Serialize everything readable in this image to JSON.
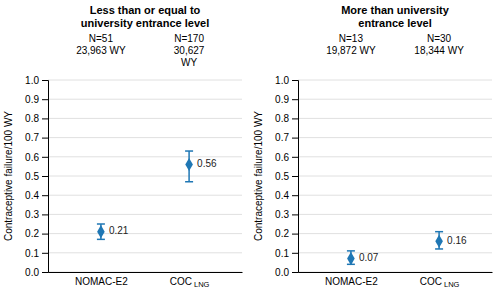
{
  "chart_data": [
    {
      "type": "scatter",
      "title": "Less than or equal to\nuniversity entrance level",
      "subtitle": [
        [
          "N=51",
          "23,963 WY"
        ],
        [
          "N=170",
          "30,627",
          "WY"
        ]
      ],
      "ylabel": "Contraceptive failure/100 WY",
      "categories": [
        "NOMAC-E2",
        "COC LNG"
      ],
      "values": [
        0.21,
        0.56
      ],
      "error_low": [
        0.04,
        0.09
      ],
      "error_high": [
        0.04,
        0.07
      ],
      "data_labels": true,
      "marker": "diamond",
      "ylim": [
        0.0,
        1.0
      ],
      "yticks": [
        {
          "value": 0.0,
          "label": "0.0"
        },
        0.1,
        0.2,
        0.3,
        0.4,
        0.5,
        0.6,
        0.7,
        0.8,
        0.9,
        {
          "value": 1.0,
          "label": "1.0"
        }
      ],
      "grid": true
    },
    {
      "type": "scatter",
      "title": "More than university\nentrance level",
      "subtitle": [
        [
          "N=13",
          "19,872 WY"
        ],
        [
          "N=30",
          "18,344 WY"
        ]
      ],
      "ylabel": "Contraceptive failure/100 WY",
      "categories": [
        "NOMAC-E2",
        "COC LNG"
      ],
      "values": [
        0.07,
        0.16
      ],
      "error_low": [
        0.03,
        0.04
      ],
      "error_high": [
        0.04,
        0.05
      ],
      "data_labels": true,
      "marker": "diamond",
      "ylim": [
        0.0,
        1.0
      ],
      "yticks": [
        {
          "value": 0.0,
          "label": "0.0"
        },
        0.1,
        0.2,
        0.3,
        0.4,
        0.5,
        0.6,
        0.7,
        0.8,
        0.9,
        {
          "value": 1.0,
          "label": "1.0"
        }
      ],
      "grid": true
    }
  ]
}
